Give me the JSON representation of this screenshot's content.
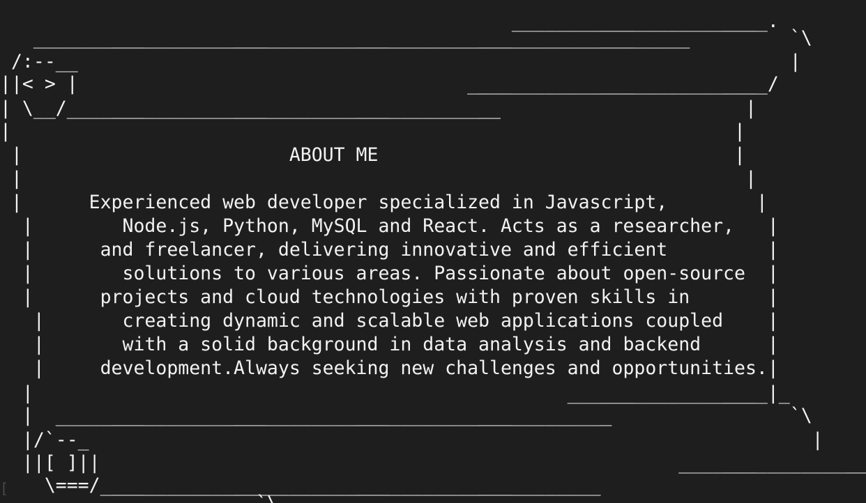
{
  "terminal": {
    "foreground": "#f2f2f2",
    "background": "#1e1e1e",
    "cursor_mark": "[",
    "lines": [
      "                                              _______________________.",
      "   ___________________________________________________________         `\\",
      " /:--__                                                                |",
      "||< > |                                   ___________________________/",
      "| \\__/_______________________________________                      |",
      "|                                                                 |",
      " |                        ABOUT ME                                |",
      " |                                                                 |",
      " |      Experienced web developer specialized in Javascript,        |",
      "  |        Node.js, Python, MySQL and React. Acts as a researcher,   |",
      "  |      and freelancer, delivering innovative and efficient         |",
      "  |        solutions to various areas. Passionate about open-source  |",
      "  |      projects and cloud technologies with proven skills in       |",
      "   |       creating dynamic and scalable web applications coupled    |",
      "   |       with a solid background in data analysis and backend      |",
      "   |     development.Always seeking new challenges and opportunities.|",
      "  |                                                __________________|_",
      "  |  __________________________________________________                `\\",
      "  |/`--_                                                                 |",
      "  ||[ ]||                                                    ___________________/",
      "    \\===/_____________________________________________",
      "                       `\\"
    ]
  }
}
